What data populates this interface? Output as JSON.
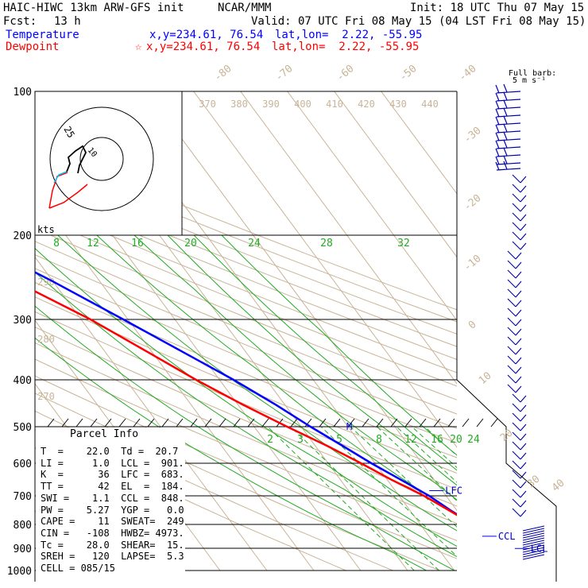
{
  "header": {
    "model": "HAIC-HIWC 13km ARW-GFS init",
    "org": "NCAR/MMM",
    "init": "Init: 18 UTC Thu 07 May 15",
    "fcst_label": "Fcst:",
    "fcst_value": "13 h",
    "valid": "Valid: 07 UTC Fri 08 May 15 (04 LST Fri 08 May 15)",
    "temp_label": "Temperature",
    "temp_coords": "x,y=234.61, 76.54",
    "temp_latlon": "lat,lon=  2.22, -55.95",
    "dew_label": "Dewpoint",
    "dew_star": "☆",
    "dew_coords": "x,y=234.61, 76.54",
    "dew_latlon": "lat,lon=  2.22, -55.95",
    "colors": {
      "temperature": "#0000ff",
      "dewpoint": "#ff0000"
    }
  },
  "chart_data": {
    "type": "skew-t",
    "pressure_levels": [
      "100",
      "200",
      "300",
      "400",
      "500",
      "600",
      "700",
      "800",
      "900",
      "1000"
    ],
    "isotherm_labels": [
      "-80",
      "-70",
      "-60",
      "-50",
      "-40",
      "-30",
      "-20",
      "-10",
      "0",
      "10",
      "20",
      "30",
      "40"
    ],
    "theta_labels": [
      "370",
      "380",
      "390",
      "400",
      "410",
      "420",
      "430",
      "440"
    ],
    "theta_low_labels": [
      "290",
      "280",
      "270"
    ],
    "mixing_ratio_top": [
      "8",
      "12",
      "16",
      "20",
      "24",
      "28",
      "32"
    ],
    "mixing_ratio_low": [
      "2",
      "3",
      "5",
      "8",
      "12",
      "16",
      "20",
      "24"
    ],
    "temperature": {
      "name": "Temperature",
      "pressure": [
        990,
        970,
        950,
        900,
        870,
        800,
        750,
        700,
        650,
        600,
        550,
        500,
        450,
        400,
        350,
        300,
        250,
        200,
        170,
        150,
        130,
        115,
        100
      ],
      "temp_c": [
        22.0,
        20.2,
        19.0,
        15.9,
        14.8,
        11.3,
        8.7,
        6.4,
        3.0,
        -0.8,
        -4.2,
        -8.0,
        -12.0,
        -17.0,
        -23.5,
        -31.0,
        -40.0,
        -52.0,
        -62.0,
        -70.0,
        -76.0,
        -80.0,
        -84.0
      ]
    },
    "dewpoint": {
      "name": "Dewpoint",
      "pressure": [
        990,
        970,
        950,
        900,
        800,
        700,
        650,
        600,
        550,
        500,
        450,
        400,
        350,
        300,
        250,
        200,
        170,
        150,
        130,
        100
      ],
      "dewp_c": [
        20.7,
        19.4,
        18.4,
        15.8,
        11.3,
        5.3,
        1.0,
        -3.0,
        -7.5,
        -13.0,
        -19.0,
        -25.0,
        -31.0,
        -38.0,
        -48.0,
        -60.0,
        -70.0,
        -80.0,
        -90.0,
        -100.0
      ]
    },
    "annotations": [
      "EL",
      "LFC",
      "CCL",
      "LCL",
      "M"
    ],
    "hodograph": {
      "rings": [
        "25",
        "10"
      ],
      "unit": "kts"
    },
    "barb_legend": {
      "line1": "Full barb:",
      "line2": "5 m s⁻¹"
    }
  },
  "parcel_info": {
    "title": "Parcel Info",
    "rows": [
      "T  =    22.0  Td =  20.7",
      "LI =     1.0  LCL =  901.",
      "K  =      36  LFC =  683.",
      "TT =      42  EL  =  184.",
      "SWI =    1.1  CCL =  848.",
      "PW =    5.27  YGP =   0.0",
      "CAPE =    11  SWEAT=  249",
      "CIN =   -108  HWBZ= 4973.",
      "Tc =    28.0  SHEAR=  15.",
      "SREH =   120  LAPSE=  5.3",
      "CELL = 085/15"
    ]
  }
}
